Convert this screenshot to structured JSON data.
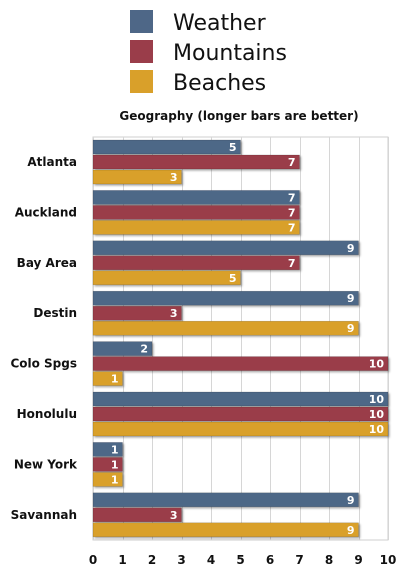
{
  "chart_data": {
    "type": "bar",
    "orientation": "horizontal",
    "title": "Geography (longer bars are better)",
    "categories": [
      "Atlanta",
      "Auckland",
      "Bay Area",
      "Destin",
      "Colo Spgs",
      "Honolulu",
      "New York",
      "Savannah"
    ],
    "series": [
      {
        "name": "Weather",
        "color": "#4e6787",
        "values": [
          5,
          7,
          9,
          9,
          2,
          10,
          1,
          9
        ]
      },
      {
        "name": "Mountains",
        "color": "#9a3d4a",
        "values": [
          7,
          7,
          7,
          3,
          10,
          10,
          1,
          3
        ]
      },
      {
        "name": "Beaches",
        "color": "#d9a02a",
        "values": [
          3,
          7,
          5,
          9,
          1,
          10,
          1,
          9
        ]
      }
    ],
    "xlim": [
      0,
      10
    ],
    "x_ticks": [
      "0",
      "1",
      "2",
      "3",
      "4",
      "5",
      "6",
      "7",
      "8",
      "9",
      "10"
    ],
    "grid": true,
    "legend_position": "top"
  }
}
